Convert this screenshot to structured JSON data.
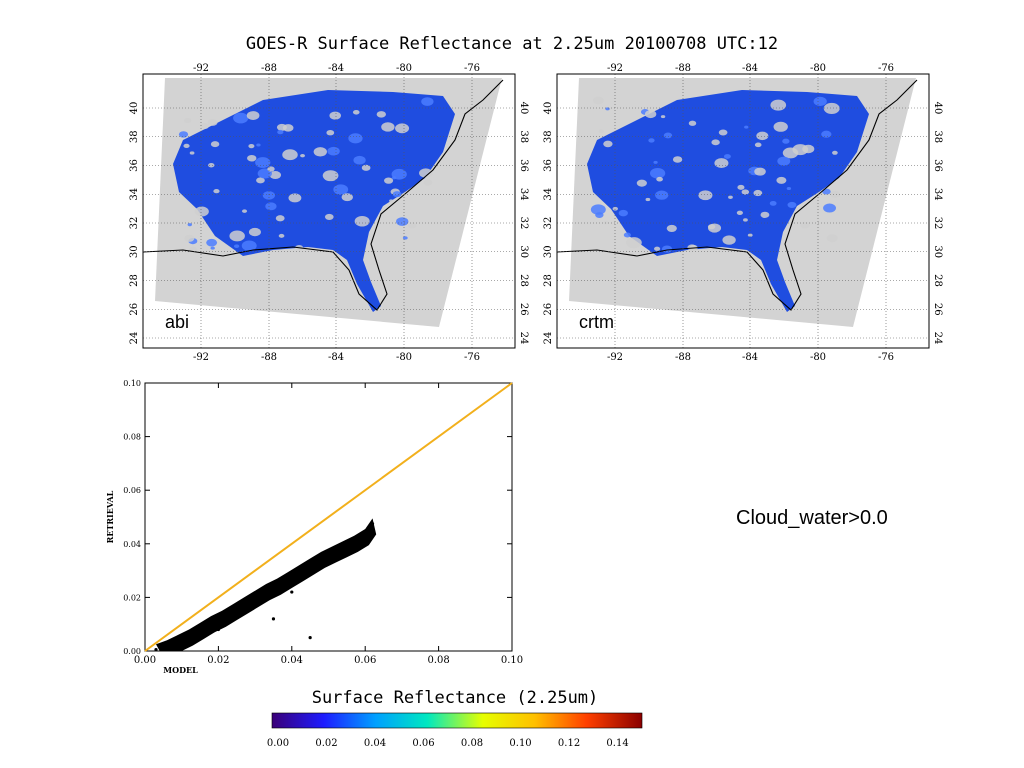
{
  "title": "GOES-R Surface Reflectance at 2.25um 20100708 UTC:12",
  "note": "Cloud_water>0.0",
  "maps": [
    {
      "label": "abi"
    },
    {
      "label": "crtm"
    }
  ],
  "map_axes": {
    "lon_ticks": [
      "-92",
      "-88",
      "-84",
      "-80",
      "-76"
    ],
    "lat_ticks": [
      "24",
      "26",
      "28",
      "30",
      "32",
      "34",
      "36",
      "38",
      "40"
    ]
  },
  "chart_data": [
    {
      "type": "scatter",
      "title": "",
      "xlabel": "MODEL",
      "ylabel": "RETRIEVAL",
      "xlim": [
        0,
        0.1
      ],
      "ylim": [
        0,
        0.1
      ],
      "xticks": [
        "0.00",
        "0.02",
        "0.04",
        "0.06",
        "0.08",
        "0.10"
      ],
      "yticks": [
        "0.00",
        "0.02",
        "0.04",
        "0.06",
        "0.08",
        "0.10"
      ],
      "reference_line": {
        "x": [
          0,
          0.1
        ],
        "y": [
          0,
          0.1
        ],
        "color": "#f2b01c"
      },
      "series": [
        {
          "color": "#000000",
          "points": [
            [
              0.003,
              0.0005
            ],
            [
              0.006,
              0.002
            ],
            [
              0.009,
              0.004
            ],
            [
              0.012,
              0.006
            ],
            [
              0.015,
              0.0085
            ],
            [
              0.018,
              0.011
            ],
            [
              0.021,
              0.013
            ],
            [
              0.024,
              0.0155
            ],
            [
              0.027,
              0.018
            ],
            [
              0.03,
              0.0205
            ],
            [
              0.033,
              0.023
            ],
            [
              0.036,
              0.025
            ],
            [
              0.039,
              0.0275
            ],
            [
              0.042,
              0.03
            ],
            [
              0.045,
              0.0325
            ],
            [
              0.048,
              0.035
            ],
            [
              0.051,
              0.037
            ],
            [
              0.054,
              0.039
            ],
            [
              0.057,
              0.041
            ],
            [
              0.06,
              0.0435
            ],
            [
              0.062,
              0.0475
            ],
            [
              0.035,
              0.012
            ],
            [
              0.02,
              0.008
            ],
            [
              0.04,
              0.022
            ],
            [
              0.045,
              0.005
            ]
          ]
        }
      ]
    }
  ],
  "colorbar": {
    "title": "Surface Reflectance (2.25um)",
    "ticks": [
      "0.00",
      "0.02",
      "0.04",
      "0.06",
      "0.08",
      "0.10",
      "0.12",
      "0.14"
    ],
    "colors": [
      "#3b0078",
      "#1e1cff",
      "#00a0ff",
      "#00e8c0",
      "#e6ff00",
      "#ffc000",
      "#ff4000",
      "#8b0000"
    ]
  }
}
